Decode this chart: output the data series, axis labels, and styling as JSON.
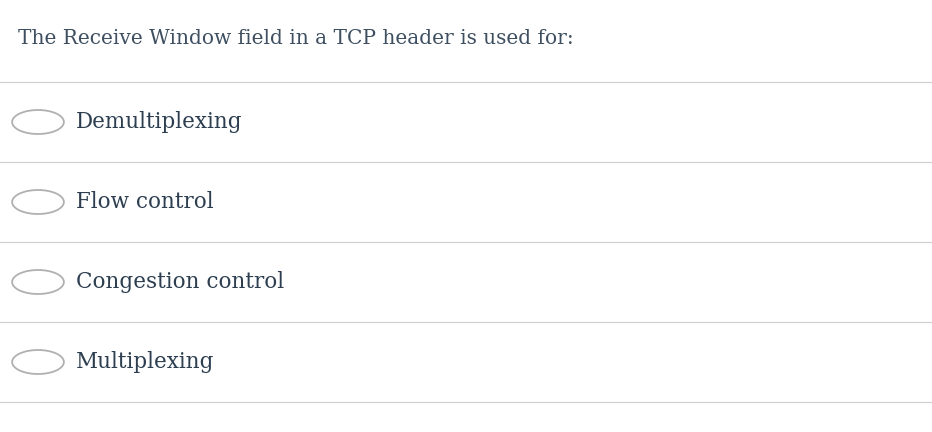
{
  "title": "The Receive Window field in a TCP header is used for:",
  "options": [
    "Demultiplexing",
    "Flow control",
    "Congestion control",
    "Multiplexing"
  ],
  "title_color": "#3d4f60",
  "option_color": "#2c3e50",
  "line_color": "#d0d0d0",
  "circle_edge_color": "#b0b0b0",
  "background_color": "#ffffff",
  "title_fontsize": 14.5,
  "option_fontsize": 15.5,
  "font_family": "DejaVu Serif"
}
